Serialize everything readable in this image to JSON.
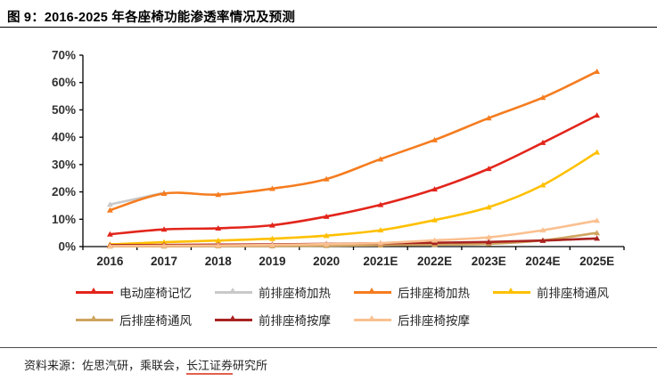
{
  "figure": {
    "title": "图 9：2016-2025 年各座椅功能渗透率情况及预测"
  },
  "footer": {
    "prefix": "资料来源：佐思汽研，乘联会，",
    "underlined": "长江证券",
    "suffix": "研究所",
    "underline_color": "#e2604c"
  },
  "chart_data": {
    "type": "line",
    "title": "2016-2025 年各座椅功能渗透率情况及预测",
    "categories": [
      "2016",
      "2017",
      "2018",
      "2019",
      "2020",
      "2021E",
      "2022E",
      "2023E",
      "2024E",
      "2025E"
    ],
    "series": [
      {
        "name": "电动座椅记忆",
        "color": "#e2251b",
        "values": [
          4.5,
          6.3,
          6.7,
          7.8,
          11,
          15.3,
          21,
          28.5,
          38,
          48
        ]
      },
      {
        "name": "前排座椅加热",
        "color": "#c9c9c9",
        "values": [
          15.4,
          19.7,
          null,
          null,
          null,
          null,
          null,
          null,
          null,
          null
        ]
      },
      {
        "name": "后排座椅加热",
        "color": "#f57c1f",
        "values": [
          13.3,
          19.4,
          19,
          21.2,
          24.7,
          32,
          39,
          47,
          54.5,
          64
        ]
      },
      {
        "name": "前排座椅通风",
        "color": "#ffc000",
        "values": [
          0.8,
          1.6,
          2.2,
          2.9,
          4,
          6,
          9.7,
          14.4,
          22.5,
          34.5
        ]
      },
      {
        "name": "后排座椅通风",
        "color": "#cfa45f",
        "values": [
          0.1,
          0.1,
          0.2,
          0.2,
          0.3,
          0.5,
          0.7,
          1.0,
          2.3,
          5
        ]
      },
      {
        "name": "前排座椅按摩",
        "color": "#a82320",
        "values": [
          0.5,
          0.6,
          0.7,
          0.8,
          1.0,
          1.2,
          1.4,
          1.7,
          2.2,
          3
        ]
      },
      {
        "name": "后排座椅按摩",
        "color": "#fac090",
        "values": [
          0.2,
          0.3,
          0.4,
          0.6,
          0.9,
          1.3,
          2.3,
          3.4,
          6,
          9.5
        ]
      }
    ],
    "ylim": [
      0,
      70
    ],
    "ytick_step": 10,
    "y_tick_labels": [
      "0%",
      "10%",
      "20%",
      "30%",
      "40%",
      "50%",
      "60%",
      "70%"
    ],
    "ylabel_format": "percent",
    "grid": false,
    "legend_position": "bottom",
    "legend_rows": [
      [
        0,
        1,
        2,
        3
      ],
      [
        4,
        5,
        6
      ]
    ],
    "axis_color": "#000000",
    "label_color": "#333333"
  }
}
